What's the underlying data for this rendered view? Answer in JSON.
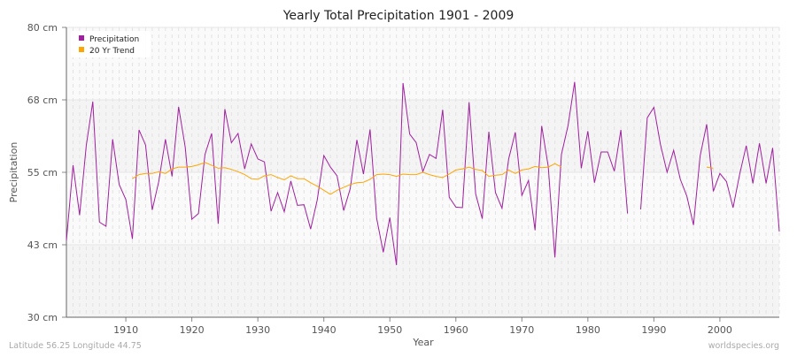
{
  "chart_data": {
    "type": "line",
    "title": "Yearly Total Precipitation 1901 - 2009",
    "xlabel": "Year",
    "ylabel": "Precipitation",
    "xlim": [
      1901,
      2009
    ],
    "ylim": [
      30,
      80
    ],
    "x_ticks": [
      1910,
      1920,
      1930,
      1940,
      1950,
      1960,
      1970,
      1980,
      1990,
      2000
    ],
    "y_ticks": [
      {
        "value": 30,
        "label": "30 cm"
      },
      {
        "value": 42.5,
        "label": "43 cm"
      },
      {
        "value": 55,
        "label": "55 cm"
      },
      {
        "value": 67.5,
        "label": "68 cm"
      },
      {
        "value": 80,
        "label": "80 cm"
      }
    ],
    "grid": true,
    "legend_position": "top-left",
    "start_year": 1901,
    "series": [
      {
        "name": "Precipitation",
        "color": "#a020a0",
        "values": [
          43.2,
          56.2,
          47.6,
          59.6,
          67.2,
          46.4,
          45.7,
          60.7,
          52.9,
          50.3,
          43.5,
          62.3,
          59.7,
          48.5,
          53.5,
          60.7,
          54.3,
          66.3,
          59.3,
          46.9,
          47.9,
          58.1,
          61.7,
          46.1,
          65.9,
          60.1,
          61.7,
          55.6,
          59.9,
          57.3,
          56.8,
          48.3,
          51.5,
          48.2,
          53.5,
          49.3,
          49.4,
          45.2,
          50.2,
          57.9,
          55.9,
          54.4,
          48.4,
          52.2,
          60.6,
          54.7,
          62.4,
          47.1,
          41.2,
          47.2,
          39.0,
          70.4,
          61.6,
          60.1,
          55.1,
          58.1,
          57.4,
          65.8,
          50.7,
          49.0,
          48.9,
          67.1,
          51.3,
          47.0,
          62.0,
          51.5,
          48.8,
          57.3,
          61.9,
          51.0,
          53.6,
          45.0,
          63.0,
          56.0,
          40.3,
          58.1,
          63.1,
          70.6,
          55.7,
          62.1,
          53.2,
          58.5,
          58.5,
          55.2,
          62.3,
          47.9,
          null,
          48.6,
          64.4,
          66.2,
          59.8,
          55.0,
          58.8,
          53.8,
          50.9,
          45.9,
          57.8,
          63.3,
          51.7,
          54.8,
          53.4,
          48.9,
          54.7,
          59.6,
          53.1,
          60.0,
          53.1,
          59.2,
          44.8
        ]
      },
      {
        "name": "20 Yr Trend",
        "color": "#ffa500",
        "values": [
          null,
          null,
          null,
          null,
          null,
          null,
          null,
          null,
          null,
          null,
          53.9,
          54.6,
          54.8,
          54.8,
          55.1,
          54.8,
          55.6,
          55.9,
          55.9,
          56.0,
          56.3,
          56.7,
          56.2,
          55.7,
          55.8,
          55.5,
          55.1,
          54.6,
          53.9,
          53.8,
          54.4,
          54.6,
          54.1,
          53.7,
          54.4,
          53.9,
          53.9,
          53.2,
          52.6,
          51.9,
          51.2,
          51.9,
          52.4,
          52.9,
          53.2,
          53.3,
          53.8,
          54.6,
          54.7,
          54.6,
          54.3,
          54.7,
          54.6,
          54.6,
          55.0,
          54.6,
          54.3,
          54.1,
          54.7,
          55.4,
          55.6,
          55.9,
          55.5,
          55.3,
          54.3,
          54.5,
          54.6,
          55.4,
          54.8,
          55.4,
          55.6,
          56.0,
          55.8,
          55.9,
          56.5,
          55.9,
          null,
          null,
          null,
          null,
          null,
          null,
          null,
          null,
          null,
          null,
          null,
          null,
          null,
          null,
          null,
          null,
          null,
          null,
          null,
          null,
          null,
          55.9,
          55.7,
          null,
          null,
          null,
          null,
          null,
          null,
          null,
          null,
          null,
          null
        ]
      }
    ]
  },
  "footer": {
    "location": "Latitude 56.25 Longitude 44.75",
    "source": "worldspecies.org"
  }
}
